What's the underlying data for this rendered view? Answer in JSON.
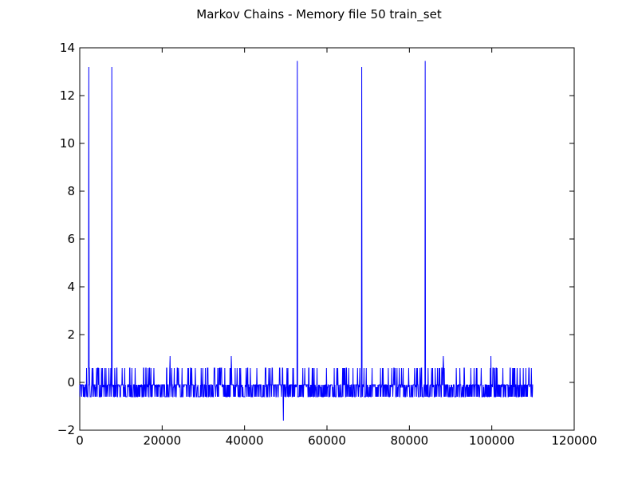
{
  "chart_data": {
    "type": "line",
    "title": "Markov Chains - Memory file 50 train_set",
    "xlabel": "",
    "ylabel": "",
    "xlim": [
      0,
      120000
    ],
    "ylim": [
      -2,
      14
    ],
    "xticks": [
      {
        "value": 0,
        "label": "0"
      },
      {
        "value": 20000,
        "label": "20000"
      },
      {
        "value": 40000,
        "label": "40000"
      },
      {
        "value": 60000,
        "label": "60000"
      },
      {
        "value": 80000,
        "label": "80000"
      },
      {
        "value": 100000,
        "label": "100000"
      },
      {
        "value": 120000,
        "label": "120000"
      }
    ],
    "yticks": [
      {
        "value": -2,
        "label": "−2"
      },
      {
        "value": 0,
        "label": "0"
      },
      {
        "value": 2,
        "label": "2"
      },
      {
        "value": 4,
        "label": "4"
      },
      {
        "value": 6,
        "label": "6"
      },
      {
        "value": 8,
        "label": "8"
      },
      {
        "value": 10,
        "label": "10"
      },
      {
        "value": 12,
        "label": "12"
      },
      {
        "value": 14,
        "label": "14"
      }
    ],
    "grid": false,
    "series": [
      {
        "color": "#0000ff",
        "x_range": [
          0,
          110000
        ],
        "baseline": -0.1,
        "low_band": [
          -0.6,
          -0.2
        ],
        "high_band": [
          0.2,
          0.6
        ],
        "spikes": [
          {
            "x": 2200,
            "y": 13.2
          },
          {
            "x": 7800,
            "y": 13.2
          },
          {
            "x": 21900,
            "y": 1.1
          },
          {
            "x": 36800,
            "y": 1.1
          },
          {
            "x": 49400,
            "y": -1.6
          },
          {
            "x": 52800,
            "y": 13.45
          },
          {
            "x": 68400,
            "y": 13.2
          },
          {
            "x": 83800,
            "y": 13.45
          },
          {
            "x": 88200,
            "y": 1.1
          },
          {
            "x": 99800,
            "y": 1.1
          }
        ]
      }
    ]
  }
}
